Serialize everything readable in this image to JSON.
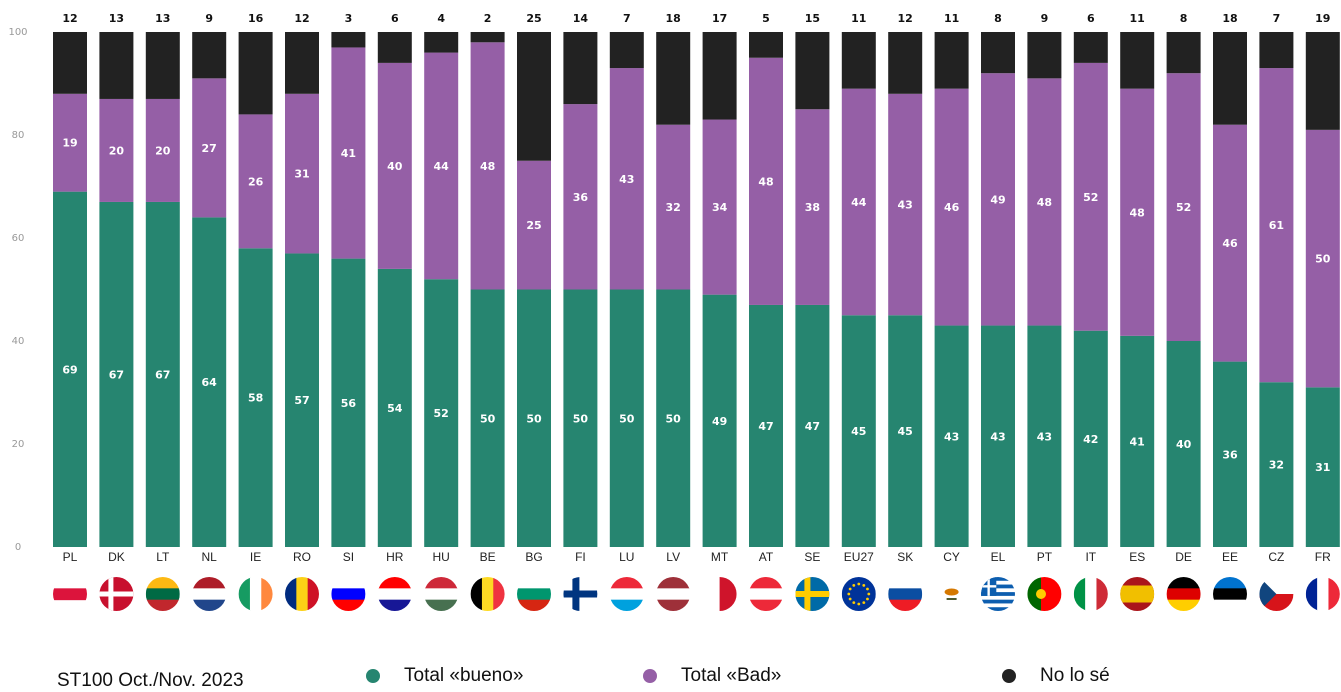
{
  "chart_data": {
    "type": "bar",
    "stacked": true,
    "categories": [
      "PL",
      "DK",
      "LT",
      "NL",
      "IE",
      "RO",
      "SI",
      "HR",
      "HU",
      "BE",
      "BG",
      "FI",
      "LU",
      "LV",
      "MT",
      "AT",
      "SE",
      "EU27",
      "SK",
      "CY",
      "EL",
      "PT",
      "IT",
      "ES",
      "DE",
      "EE",
      "CZ",
      "FR"
    ],
    "series": [
      {
        "name": "Total «bueno»",
        "color": "#268570",
        "values": [
          69,
          67,
          67,
          64,
          58,
          57,
          56,
          54,
          52,
          50,
          50,
          50,
          50,
          50,
          49,
          47,
          47,
          45,
          45,
          43,
          43,
          43,
          42,
          41,
          40,
          36,
          32,
          31
        ]
      },
      {
        "name": "Total «Bad»",
        "color": "#955fa6",
        "values": [
          19,
          20,
          20,
          27,
          26,
          31,
          41,
          40,
          44,
          48,
          25,
          36,
          43,
          32,
          34,
          48,
          38,
          44,
          43,
          46,
          49,
          48,
          52,
          48,
          52,
          46,
          61,
          50
        ]
      },
      {
        "name": "No lo sé",
        "color": "#222222",
        "values": [
          12,
          13,
          13,
          9,
          16,
          12,
          3,
          6,
          4,
          2,
          25,
          14,
          7,
          18,
          17,
          5,
          15,
          11,
          12,
          11,
          8,
          9,
          6,
          11,
          8,
          18,
          7,
          19
        ]
      }
    ],
    "ylim": [
      0,
      100
    ],
    "yticks": [
      0,
      20,
      40,
      60,
      80,
      100
    ],
    "grid": false,
    "legend_position": "bottom"
  },
  "footer": {
    "source": "ST100 Oct./Nov. 2023"
  },
  "flags": [
    "flag-pl",
    "flag-dk",
    "flag-lt",
    "flag-nl",
    "flag-ie",
    "flag-ro",
    "flag-si",
    "flag-hr",
    "flag-hu",
    "flag-be",
    "flag-bg",
    "flag-fi",
    "flag-lu",
    "flag-lv",
    "flag-mt",
    "flag-at",
    "flag-se",
    "flag-eu",
    "flag-sk",
    "flag-cy",
    "flag-el",
    "flag-pt",
    "flag-it",
    "flag-es",
    "flag-de",
    "flag-ee",
    "flag-cz",
    "flag-fr"
  ]
}
